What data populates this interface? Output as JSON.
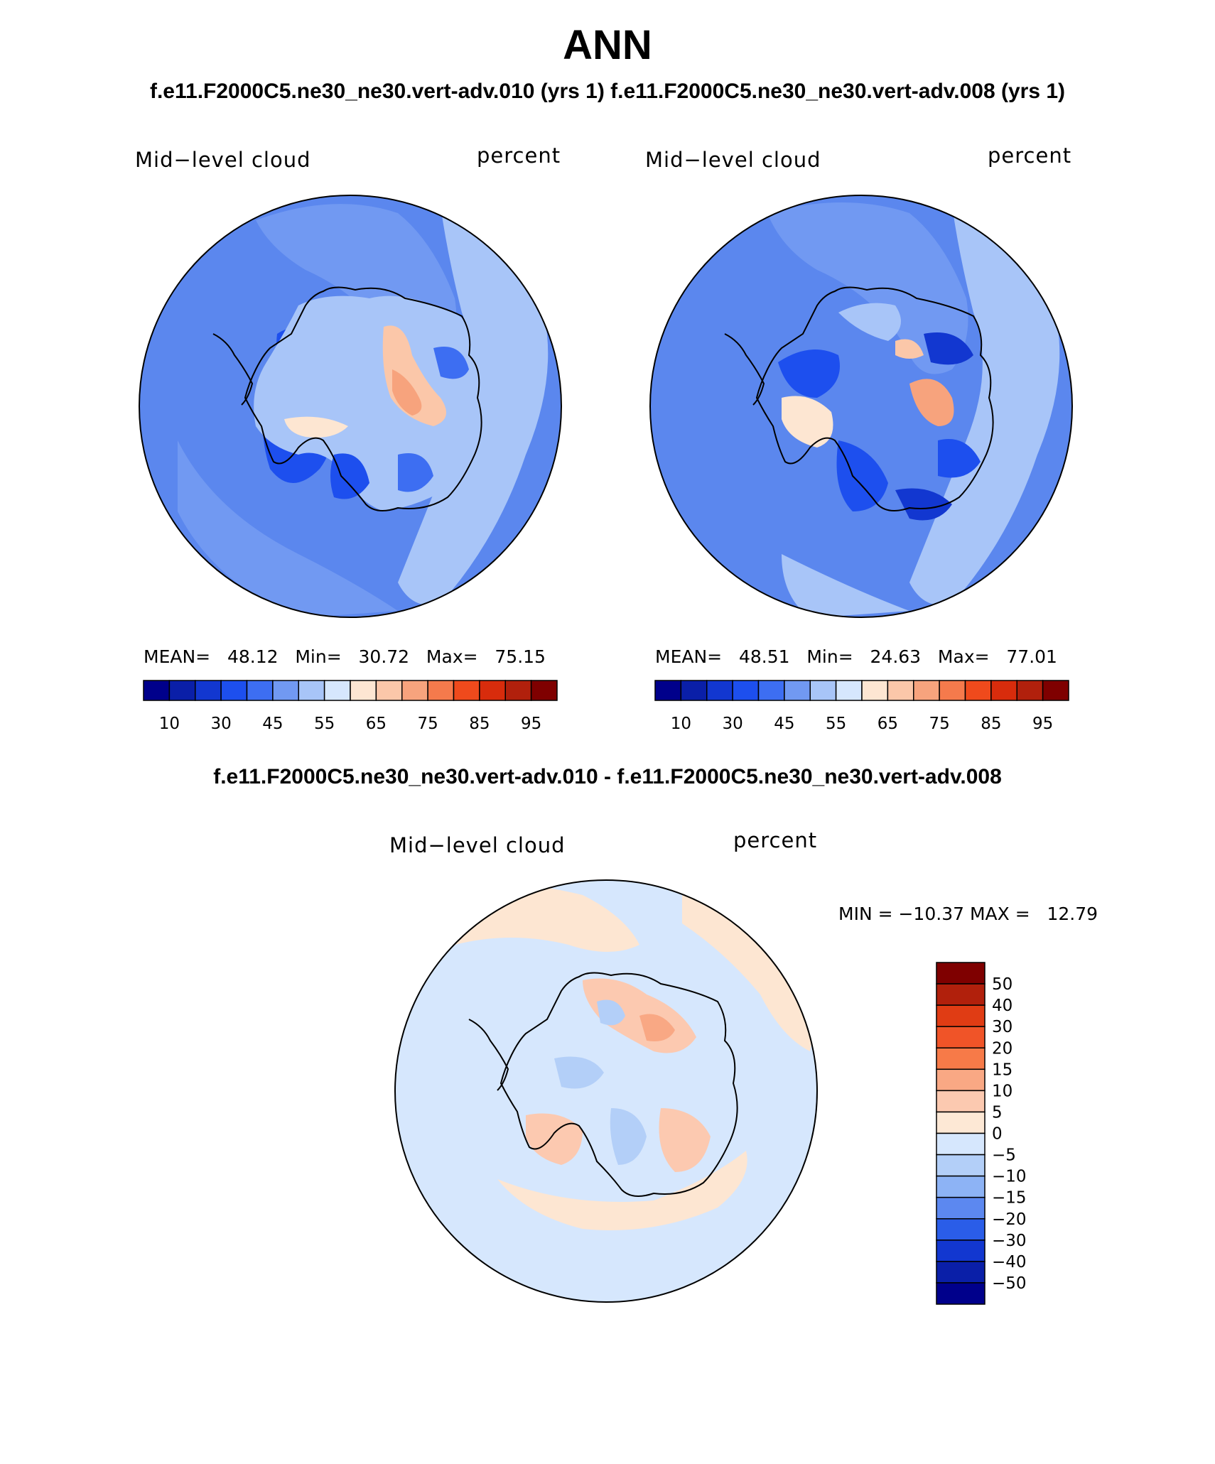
{
  "header": {
    "title": "ANN",
    "subtitle": "f.e11.F2000C5.ne30_ne30.vert-adv.010 (yrs 1) f.e11.F2000C5.ne30_ne30.vert-adv.008 (yrs 1)",
    "diff_title": "f.e11.F2000C5.ne30_ne30.vert-adv.010 - f.e11.F2000C5.ne30_ne30.vert-adv.008"
  },
  "panels": [
    {
      "variable": "Mid−level cloud",
      "units": "percent",
      "stats": "MEAN=   48.12   Min=   30.72   Max=   75.15"
    },
    {
      "variable": "Mid−level cloud",
      "units": "percent",
      "stats": "MEAN=   48.51   Min=   24.63   Max=   77.01"
    },
    {
      "variable": "Mid−level cloud",
      "units": "percent",
      "stats": "MIN = −10.37 MAX =   12.79"
    }
  ],
  "colorbar_abs": {
    "labels": [
      "10",
      "30",
      "45",
      "55",
      "65",
      "75",
      "85",
      "95"
    ],
    "colors": [
      "#00008b",
      "#0a1fa8",
      "#1237d0",
      "#1d4fee",
      "#3d6ef2",
      "#7199f2",
      "#a8c5f8",
      "#d6e7fd",
      "#fde6d2",
      "#fbc7a9",
      "#f7a37d",
      "#f57a4c",
      "#ef4a1c",
      "#d82c0c",
      "#b1200c",
      "#7f0000"
    ]
  },
  "colorbar_diff": {
    "labels": [
      "50",
      "40",
      "30",
      "20",
      "15",
      "10",
      "5",
      "0",
      "−5",
      "−10",
      "−15",
      "−20",
      "−30",
      "−40",
      "−50"
    ],
    "colors": [
      "#7f0000",
      "#b1200c",
      "#e03c14",
      "#f05428",
      "#f77a48",
      "#f9a884",
      "#fcc9b0",
      "#fde8d5",
      "#d6e7fd",
      "#b3cff8",
      "#8db3f5",
      "#5c88f0",
      "#2a5de8",
      "#1237d0",
      "#0a1fa8",
      "#00008b"
    ]
  },
  "colors": {
    "ocean_abs": "#5b87ee",
    "ocean_abs_light": "#a8c5f8",
    "ocean_diff": "#d6e7fd",
    "diff_pos": "#fde6d2",
    "land_outline": "#000000"
  }
}
